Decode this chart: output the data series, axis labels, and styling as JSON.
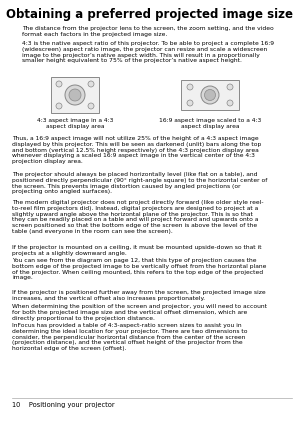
{
  "title": "Obtaining a preferred projected image size",
  "para1": "The distance from the projector lens to the screen, the zoom setting, and the video\nformat each factors in the projected image size.",
  "para2": "4:3 is the native aspect ratio of this projector. To be able to project a complete 16:9\n(widescreen) aspect ratio image, the projector can resize and scale a widescreen\nimage to the projector’s native aspect width. This will result in a proportionally\nsmaller height equivalent to 75% of the projector’s native aspect height.",
  "caption_left": "4:3 aspect image in a 4:3\naspect display area",
  "caption_right": "16:9 aspect image scaled to a 4:3\naspect display area",
  "para3": "Thus, a 16:9 aspect image will not utilize 25% of the height of a 4:3 aspect image\ndisplayed by this projector. This will be seen as darkened (unlit) bars along the top\nand bottom (vertical 12.5% height respectively) of the 4:3 projection display area\nwhenever displaying a scaled 16:9 aspect image in the vertical center of the 4:3\nprojection display area.",
  "para4": "The projector should always be placed horizontally level (like flat on a table), and\npositioned directly perpendicular (90° right-angle square) to the horizontal center of\nthe screen. This prevents image distortion caused by angled projections (or\nprojecting onto angled surfaces).",
  "para5": "The modern digital projector does not project directly forward (like older style reel-\nto-reel film projectors did). Instead, digital projectors are designed to project at a\nslightly upward angle above the horizontal plane of the projector. This is so that\nthey can be readily placed on a table and will project forward and upwards onto a\nscreen positioned so that the bottom edge of the screen is above the level of the\ntable (and everyone in the room can see the screen).",
  "para6": "If the projector is mounted on a ceiling, it must be mounted upside-down so that it\nprojects at a slightly downward angle.",
  "para7": "You can see from the diagram on page 12, that this type of projection causes the\nbottom edge of the projected image to be vertically offset from the horizontal plane\nof the projector. When ceiling mounted, this refers to the top edge of the projected\nimage.",
  "para8": "If the projector is positioned further away from the screen, the projected image size\nincreases, and the vertical offset also increases proportionately.",
  "para9": "When determining the position of the screen and projector, you will need to account\nfor both the projected image size and the vertical offset dimension, which are\ndirectly proportional to the projection distance.",
  "para10": "InFocus has provided a table of 4:3-aspect-ratio screen sizes to assist you in\ndetermining the ideal location for your projector. There are two dimensions to\nconsider, the perpendicular horizontal distance from the center of the screen\n(projection distance), and the vertical offset height of the projector from the\nhorizontal edge of the screen (offset).",
  "footer": "10    Positioning your projector",
  "link_color": "#0000cc",
  "text_color": "#000000",
  "bg_color": "#ffffff",
  "title_fontsize": 8.5,
  "body_fontsize": 4.3,
  "caption_fontsize": 4.3,
  "footer_fontsize": 4.8
}
